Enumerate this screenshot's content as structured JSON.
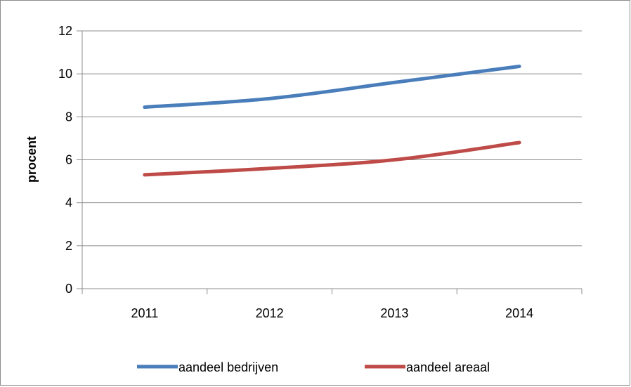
{
  "chart_data": {
    "type": "line",
    "title": "",
    "xlabel": "",
    "ylabel": "procent",
    "categories": [
      "2011",
      "2012",
      "2013",
      "2014"
    ],
    "ylim": [
      0,
      12
    ],
    "yticks": [
      0,
      2,
      4,
      6,
      8,
      10,
      12
    ],
    "grid": true,
    "legend_position": "bottom",
    "series": [
      {
        "name": "aandeel bedrijven",
        "values": [
          8.45,
          8.85,
          9.6,
          10.35
        ],
        "color": "#4a7ebb"
      },
      {
        "name": "aandeel areaal",
        "values": [
          5.3,
          5.6,
          6.0,
          6.8
        ],
        "color": "#be4b48"
      }
    ]
  }
}
